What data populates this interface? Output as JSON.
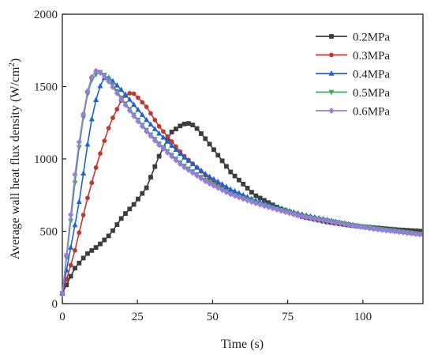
{
  "chart_data": {
    "type": "line",
    "title": "",
    "xlabel": "Time (s)",
    "ylabel_main": "Average wall heat flux density (W/cm",
    "ylabel_sup": "2",
    "ylabel_end": ")",
    "xlim": [
      0,
      120
    ],
    "ylim": [
      0,
      2000
    ],
    "xticks": [
      0,
      25,
      50,
      75,
      100
    ],
    "yticks": [
      0,
      500,
      1000,
      1500,
      2000
    ],
    "grid": false,
    "legend_position": "top-right",
    "series": [
      {
        "name": "0.2MPa",
        "color": "#3c3c3c",
        "marker": "square",
        "x": [
          0,
          4,
          8,
          12,
          16,
          20,
          24,
          28,
          32,
          36,
          40,
          42,
          44,
          48,
          56,
          64,
          72,
          80,
          88,
          96,
          104,
          112,
          120
        ],
        "y": [
          70,
          240,
          340,
          400,
          480,
          600,
          690,
          800,
          1010,
          1180,
          1240,
          1245,
          1230,
          1130,
          910,
          750,
          660,
          600,
          565,
          540,
          525,
          510,
          500
        ]
      },
      {
        "name": "0.3MPa",
        "color": "#c0392b",
        "marker": "circle",
        "x": [
          0,
          4,
          8,
          12,
          16,
          20,
          22,
          24,
          28,
          32,
          40,
          48,
          56,
          64,
          72,
          80,
          88,
          96,
          104,
          112,
          120
        ],
        "y": [
          70,
          350,
          700,
          1000,
          1250,
          1420,
          1455,
          1450,
          1360,
          1230,
          1030,
          880,
          770,
          700,
          650,
          610,
          575,
          545,
          520,
          500,
          480
        ]
      },
      {
        "name": "0.4MPa",
        "color": "#1f62d6",
        "marker": "triangle",
        "x": [
          0,
          2,
          4,
          6,
          8,
          10,
          12,
          14,
          15,
          16,
          20,
          24,
          28,
          32,
          40,
          48,
          56,
          64,
          72,
          80,
          88,
          96,
          104,
          112,
          120
        ],
        "y": [
          70,
          300,
          520,
          750,
          1050,
          1300,
          1480,
          1560,
          1565,
          1555,
          1470,
          1370,
          1270,
          1180,
          1020,
          890,
          790,
          715,
          660,
          615,
          580,
          545,
          520,
          500,
          480
        ]
      },
      {
        "name": "0.5MPa",
        "color": "#3cab58",
        "marker": "triangle-down",
        "x": [
          0,
          2,
          4,
          6,
          8,
          10,
          12,
          13,
          14,
          16,
          20,
          24,
          28,
          32,
          40,
          48,
          56,
          64,
          72,
          80,
          88,
          96,
          104,
          112,
          120
        ],
        "y": [
          70,
          420,
          800,
          1150,
          1420,
          1560,
          1600,
          1600,
          1580,
          1540,
          1410,
          1300,
          1200,
          1110,
          960,
          850,
          760,
          700,
          650,
          605,
          575,
          545,
          520,
          500,
          480
        ]
      },
      {
        "name": "0.6MPa",
        "color": "#9b7be0",
        "marker": "diamond",
        "x": [
          0,
          2,
          4,
          6,
          8,
          10,
          11,
          12,
          14,
          16,
          20,
          24,
          28,
          32,
          40,
          48,
          56,
          64,
          72,
          80,
          88,
          96,
          104,
          112,
          120
        ],
        "y": [
          70,
          450,
          860,
          1180,
          1440,
          1580,
          1610,
          1605,
          1570,
          1520,
          1400,
          1290,
          1190,
          1100,
          950,
          840,
          755,
          695,
          645,
          600,
          570,
          540,
          515,
          495,
          475
        ]
      }
    ]
  }
}
